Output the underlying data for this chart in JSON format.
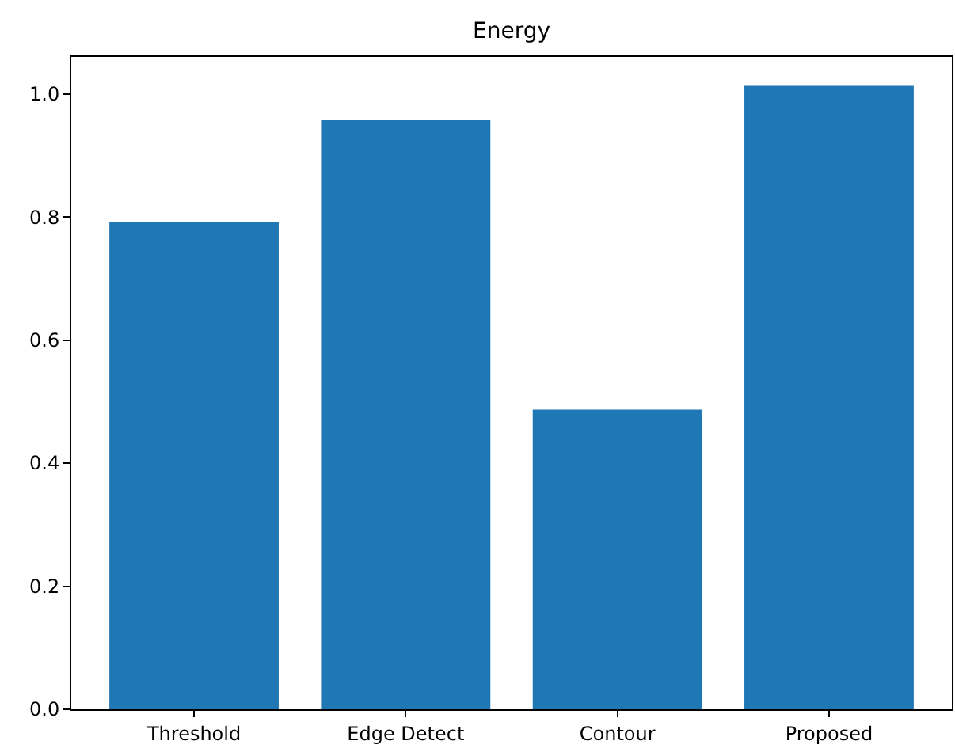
{
  "chart_data": {
    "type": "bar",
    "title": "Energy",
    "categories": [
      "Threshold",
      "Edge Detect",
      "Contour",
      "Proposed"
    ],
    "values": [
      0.791,
      0.957,
      0.487,
      1.013
    ],
    "color": "#1f77b4",
    "ylim": [
      0,
      1.06
    ],
    "yticks": [
      {
        "value": 0,
        "label": "0.0"
      },
      0.2,
      0.4,
      0.6,
      0.8,
      {
        "value": 1,
        "label": "1.0"
      }
    ]
  }
}
